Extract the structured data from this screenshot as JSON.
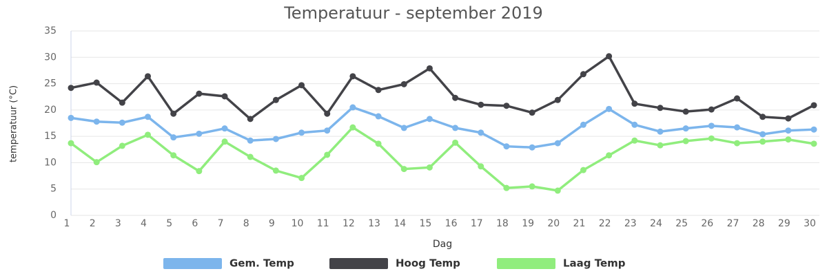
{
  "chart_data": {
    "type": "line",
    "title": "Temperatuur - september 2019",
    "x_label": "Dag",
    "y_label": "temperatuur (°C)",
    "categories": [
      "1",
      "2",
      "3",
      "4",
      "5",
      "6",
      "7",
      "8",
      "9",
      "10",
      "11",
      "12",
      "13",
      "14",
      "15",
      "16",
      "17",
      "18",
      "19",
      "20",
      "21",
      "22",
      "23",
      "24",
      "25",
      "26",
      "27",
      "28",
      "29",
      "30"
    ],
    "series": [
      {
        "name": "Gem. Temp",
        "color": "#7cb5ec",
        "values": [
          18.5,
          17.8,
          17.6,
          18.7,
          14.8,
          15.5,
          16.5,
          14.2,
          14.5,
          15.7,
          16.1,
          20.5,
          18.8,
          16.6,
          18.3,
          16.6,
          15.7,
          13.1,
          12.9,
          13.7,
          17.2,
          20.2,
          17.2,
          15.9,
          16.5,
          17.0,
          16.7,
          15.4,
          16.1,
          16.3
        ]
      },
      {
        "name": "Hoog Temp",
        "color": "#434348",
        "values": [
          24.2,
          25.2,
          21.4,
          26.4,
          19.3,
          23.1,
          22.6,
          18.3,
          21.9,
          24.7,
          19.3,
          26.4,
          23.8,
          24.9,
          27.9,
          22.3,
          21.0,
          20.8,
          19.5,
          21.9,
          26.8,
          30.2,
          21.2,
          20.4,
          19.7,
          20.1,
          22.2,
          18.7,
          18.4,
          20.9
        ]
      },
      {
        "name": "Laag Temp",
        "color": "#90ed7d",
        "values": [
          13.7,
          10.1,
          13.2,
          15.3,
          11.4,
          8.4,
          14.0,
          11.1,
          8.5,
          7.1,
          11.5,
          16.7,
          13.6,
          8.8,
          9.1,
          13.8,
          9.3,
          5.2,
          5.5,
          4.7,
          8.6,
          11.4,
          14.2,
          13.3,
          14.1,
          14.6,
          13.7,
          14.0,
          14.4,
          13.6
        ]
      }
    ],
    "ylim": [
      0,
      35
    ],
    "yticks": [
      0,
      5,
      10,
      15,
      20,
      25,
      30,
      35
    ],
    "grid": true,
    "legend": "bottom"
  }
}
